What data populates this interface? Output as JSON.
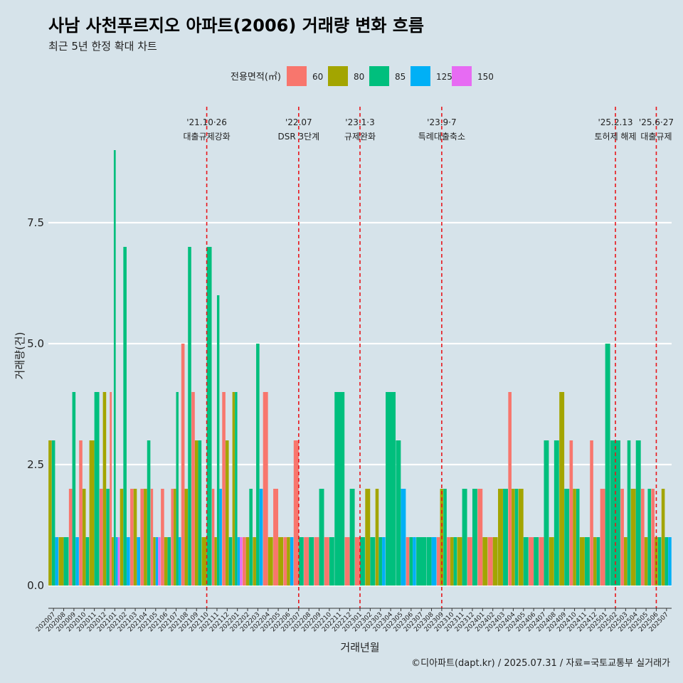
{
  "chart_data": {
    "type": "bar",
    "title": "사남 사천푸르지오 아파트(2006) 거래량 변화 흐름",
    "subtitle": "최근 5년 한정 확대 차트",
    "xlabel": "거래년월",
    "ylabel": "거래량(건)",
    "legend": {
      "title": "전용면적(㎡)",
      "position": "top"
    },
    "caption": "©디아파트(dapt.kr) / 2025.07.31 / 자료=국토교통부 실거래가",
    "ylim": [
      -0.5,
      9.6
    ],
    "yticks": [
      "0.0",
      "2.5",
      "5.0",
      "7.5"
    ],
    "ytick_values": [
      0,
      2.5,
      5,
      7.5
    ],
    "categories": [
      "202007",
      "202008",
      "202009",
      "202010",
      "202011",
      "202012",
      "202101",
      "202102",
      "202103",
      "202104",
      "202105",
      "202106",
      "202107",
      "202108",
      "202109",
      "202110",
      "202111",
      "202112",
      "202201",
      "202202",
      "202203",
      "202204",
      "202205",
      "202206",
      "202207",
      "202208",
      "202209",
      "202210",
      "202211",
      "202212",
      "202301",
      "202302",
      "202303",
      "202304",
      "202305",
      "202306",
      "202307",
      "202308",
      "202309",
      "202310",
      "202311",
      "202312",
      "202401",
      "202402",
      "202403",
      "202404",
      "202405",
      "202406",
      "202407",
      "202408",
      "202409",
      "202410",
      "202411",
      "202412",
      "202501",
      "202502",
      "202503",
      "202504",
      "202505",
      "202506",
      "202507"
    ],
    "tick_labels": [
      "202007",
      "202008",
      "202009",
      "202010",
      "202011",
      "202012",
      "202101",
      "202102",
      "202103",
      "202104",
      "202105",
      "202106",
      "202107",
      "202108",
      "202109",
      "202110",
      "202111",
      "202112",
      "202201",
      "202202",
      "202203",
      "202204",
      "202205",
      "202206",
      "202207",
      "202208",
      "202209",
      "202210",
      "202211",
      "202212",
      "202301",
      "202302",
      "202303",
      "202304",
      "202305",
      "202306",
      "202307",
      "202308",
      "202309",
      "202310",
      "202311",
      "202312",
      "202401",
      "202402",
      "202403",
      "202404",
      "202405",
      "202406",
      "202407",
      "202408",
      "202409",
      "202410",
      "202411",
      "202412",
      "202501",
      "202502",
      "202503",
      "202504",
      "202505",
      "202506",
      "202507"
    ],
    "series": [
      {
        "name": "60",
        "color": "#f8766d",
        "values": [
          0,
          0,
          2,
          3,
          0,
          2,
          4,
          0,
          2,
          2,
          2,
          2,
          2,
          5,
          4,
          0,
          2,
          4,
          0,
          1,
          0,
          4,
          2,
          1,
          3,
          1,
          1,
          1,
          0,
          1,
          1,
          0,
          0,
          0,
          0,
          1,
          0,
          0,
          1,
          1,
          0,
          1,
          2,
          1,
          0,
          4,
          0,
          1,
          1,
          0,
          0,
          3,
          0,
          3,
          2,
          0,
          2,
          0,
          2,
          2,
          0
        ]
      },
      {
        "name": "80",
        "color": "#a3a500",
        "values": [
          3,
          1,
          0,
          2,
          3,
          4,
          1,
          2,
          2,
          2,
          1,
          1,
          2,
          2,
          3,
          1,
          1,
          3,
          4,
          1,
          1,
          1,
          1,
          1,
          0,
          0,
          0,
          0,
          0,
          0,
          0,
          2,
          2,
          0,
          0,
          0,
          0,
          0,
          2,
          1,
          1,
          0,
          1,
          1,
          2,
          2,
          2,
          0,
          0,
          1,
          4,
          2,
          1,
          1,
          0,
          0,
          1,
          2,
          1,
          1,
          2
        ]
      },
      {
        "name": "85",
        "color": "#00bf7d",
        "values": [
          3,
          1,
          4,
          1,
          4,
          2,
          9,
          7,
          0,
          3,
          0,
          1,
          4,
          7,
          3,
          7,
          6,
          1,
          4,
          2,
          5,
          0,
          0,
          0,
          1,
          1,
          2,
          1,
          4,
          2,
          1,
          1,
          1,
          4,
          3,
          1,
          1,
          1,
          2,
          1,
          2,
          2,
          0,
          0,
          2,
          2,
          1,
          1,
          3,
          3,
          2,
          2,
          1,
          1,
          5,
          3,
          3,
          3,
          2,
          1,
          1
        ]
      },
      {
        "name": "125",
        "color": "#00b0f6",
        "values": [
          1,
          0,
          1,
          0,
          0,
          0,
          1,
          1,
          1,
          0,
          1,
          0,
          1,
          0,
          0,
          0,
          2,
          0,
          1,
          0,
          2,
          0,
          0,
          1,
          0,
          0,
          0,
          0,
          0,
          0,
          0,
          0,
          1,
          0,
          2,
          1,
          0,
          1,
          0,
          0,
          0,
          0,
          0,
          0,
          0,
          0,
          0,
          0,
          0,
          0,
          0,
          0,
          0,
          0,
          0,
          0,
          0,
          0,
          0,
          0,
          1
        ]
      },
      {
        "name": "150",
        "color": "#e76bf3",
        "values": [
          0,
          0,
          0,
          0,
          0,
          0,
          1,
          0,
          0,
          0,
          1,
          0,
          0,
          0,
          0,
          0,
          0,
          0,
          1,
          0,
          0,
          0,
          0,
          0,
          0,
          0,
          0,
          0,
          0,
          0,
          0,
          0,
          0,
          0,
          0,
          0,
          0,
          0,
          0,
          0,
          0,
          0,
          0,
          0,
          0,
          0,
          0,
          0,
          0,
          0,
          0,
          0,
          0,
          0,
          0,
          0,
          0,
          0,
          0,
          0,
          0
        ]
      }
    ],
    "events": [
      {
        "at": "202110",
        "date": "'21.10·26",
        "label": "대출규제강화"
      },
      {
        "at": "202207",
        "date": "'22.07",
        "label": "DSR 3단계"
      },
      {
        "at": "202301",
        "date": "'23.1·3",
        "label": "규제완화"
      },
      {
        "at": "202309",
        "date": "'23.9·7",
        "label": "특례대출축소"
      },
      {
        "at": "202502",
        "date": "'25.2.13",
        "label": "토허제 해제"
      },
      {
        "at": "202506",
        "date": "'25.6·27",
        "label": "대출규제"
      }
    ]
  }
}
